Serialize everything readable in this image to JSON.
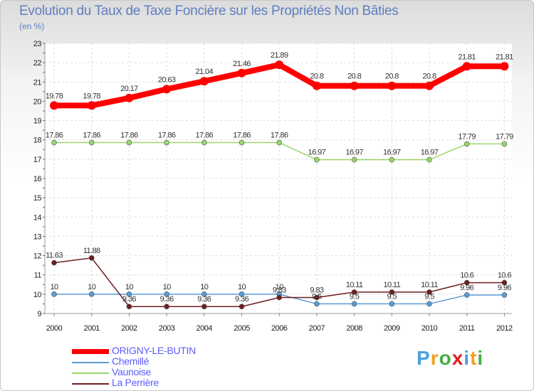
{
  "title": "Evolution du Taux de Taxe Foncière sur les Propriétés Non Bâties",
  "unit_label": "(en %)",
  "brand": {
    "letters": [
      "P",
      "r",
      "o",
      "x",
      "i",
      "t",
      "i"
    ],
    "colors": [
      "#4aa0e0",
      "#f0a020",
      "#40b040",
      "#e02020",
      "#4aa0e0",
      "#f0a020",
      "#40b040"
    ]
  },
  "chart_data": {
    "type": "line",
    "x": [
      "2000",
      "2001",
      "2002",
      "2003",
      "2004",
      "2005",
      "2006",
      "2007",
      "2008",
      "2009",
      "2010",
      "2011",
      "2012"
    ],
    "ylim": [
      9,
      23
    ],
    "yticks": [
      9,
      10,
      11,
      12,
      13,
      14,
      15,
      16,
      17,
      18,
      19,
      20,
      21,
      22,
      23
    ],
    "grid": true,
    "series": [
      {
        "name": "ORIGNY-LE-BUTIN",
        "color": "#ff0000",
        "width": 8,
        "marker": 6,
        "values": [
          19.78,
          19.78,
          20.17,
          20.63,
          21.04,
          21.46,
          21.89,
          20.8,
          20.8,
          20.8,
          20.8,
          21.81,
          21.81
        ],
        "labels": [
          "19.78",
          "19.78",
          "20.17",
          "20.63",
          "21.04",
          "21.46",
          "21.89",
          "20.8",
          "20.8",
          "20.8",
          "20.8",
          "21.81",
          "21.81"
        ]
      },
      {
        "name": "Chemillé",
        "color": "#5b9bd5",
        "width": 1.5,
        "marker": 3.5,
        "values": [
          10,
          10,
          10,
          10,
          10,
          10,
          10,
          9.5,
          9.5,
          9.5,
          9.5,
          9.96,
          9.96
        ],
        "labels": [
          "10",
          "10",
          "10",
          "10",
          "10",
          "10",
          "10",
          "9.5",
          "9.5",
          "9.5",
          "9.5",
          "9.96",
          "9.96"
        ]
      },
      {
        "name": "Vaunoise",
        "color": "#99d66b",
        "width": 1.5,
        "marker": 3.5,
        "values": [
          17.86,
          17.86,
          17.86,
          17.86,
          17.86,
          17.86,
          17.86,
          16.97,
          16.97,
          16.97,
          16.97,
          17.79,
          17.79
        ],
        "labels": [
          "17.86",
          "17.86",
          "17.86",
          "17.86",
          "17.86",
          "17.86",
          "17.86",
          "16.97",
          "16.97",
          "16.97",
          "16.97",
          "17.79",
          "17.79"
        ]
      },
      {
        "name": "La Perrière",
        "color": "#6e1f1f",
        "width": 1.5,
        "marker": 3.5,
        "values": [
          11.63,
          11.88,
          9.36,
          9.36,
          9.36,
          9.36,
          9.83,
          9.83,
          10.11,
          10.11,
          10.11,
          10.6,
          10.6
        ],
        "labels": [
          "11.63",
          "11.88",
          "9.36",
          "9.36",
          "9.36",
          "9.36",
          "9.83",
          "9.83",
          "10.11",
          "10.11",
          "10.11",
          "10.6",
          "10.6"
        ]
      }
    ]
  }
}
